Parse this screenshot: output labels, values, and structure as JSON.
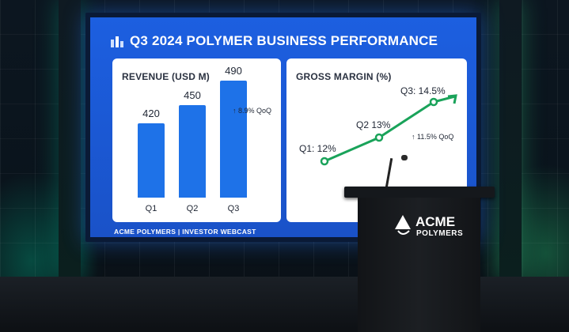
{
  "slide": {
    "title": "Q3 2024 POLYMER BUSINESS PERFORMANCE",
    "footer": "ACME POLYMERS | INVESTOR WEBCAST"
  },
  "revenue_card": {
    "title": "REVENUE (USD M)",
    "qoq": "↑ 8.9% QoQ"
  },
  "margin_card": {
    "title": "GROSS MARGIN (%)",
    "qoq": "↑ 11.5% QoQ"
  },
  "podium": {
    "brand_line1": "ACME",
    "brand_line2": "POLYMERS"
  },
  "colors": {
    "slide_blue": "#1c5fe0",
    "bar_blue": "#1e72e8",
    "line_green": "#1aa35a"
  },
  "chart_data": [
    {
      "type": "bar",
      "title": "REVENUE (USD M)",
      "categories": [
        "Q1",
        "Q2",
        "Q3"
      ],
      "values": [
        420,
        450,
        490
      ],
      "data_labels": [
        "420",
        "450",
        "490"
      ]
    },
    {
      "type": "line",
      "title": "GROSS MARGIN (%)",
      "categories": [
        "Q1",
        "Q2",
        "Q3"
      ],
      "values": [
        12,
        13,
        14.5
      ],
      "data_labels": [
        "Q1: 12%",
        "Q2 13%",
        "Q3: 14.5%"
      ]
    }
  ]
}
